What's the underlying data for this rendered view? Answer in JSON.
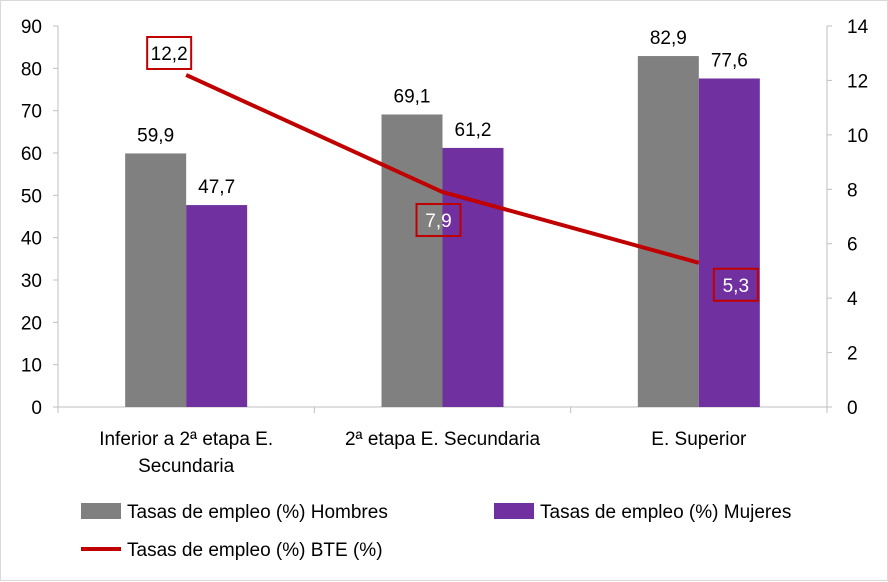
{
  "chart_data": {
    "type": "bar",
    "categories": [
      [
        "Inferior a 2ª etapa E.",
        "Secundaria"
      ],
      [
        "2ª etapa E. Secundaria"
      ],
      [
        "E. Superior"
      ]
    ],
    "series": [
      {
        "name": "Tasas de empleo (%) Hombres",
        "type": "bar",
        "axis": "left",
        "color": "#808080",
        "values": [
          59.9,
          69.1,
          82.9
        ],
        "labels": [
          "59,9",
          "69,1",
          "82,9"
        ]
      },
      {
        "name": "Tasas de empleo (%) Mujeres",
        "type": "bar",
        "axis": "left",
        "color": "#7030A0",
        "values": [
          47.7,
          61.2,
          77.6
        ],
        "labels": [
          "47,7",
          "61,2",
          "77,6"
        ]
      },
      {
        "name": "Tasas de empleo (%) BTE (%)",
        "type": "line",
        "axis": "right",
        "color": "#C00000",
        "values": [
          12.2,
          7.9,
          5.3
        ],
        "labels": [
          "12,2",
          "7,9",
          "5,3"
        ]
      }
    ],
    "y_left": {
      "range": [
        0,
        90
      ],
      "ticks": [
        "0",
        "10",
        "20",
        "30",
        "40",
        "50",
        "60",
        "70",
        "80",
        "90"
      ]
    },
    "y_right": {
      "range": [
        0,
        14
      ],
      "ticks": [
        "0",
        "2",
        "4",
        "6",
        "8",
        "10",
        "12",
        "14"
      ]
    },
    "grid": false,
    "legend": "bottom"
  }
}
